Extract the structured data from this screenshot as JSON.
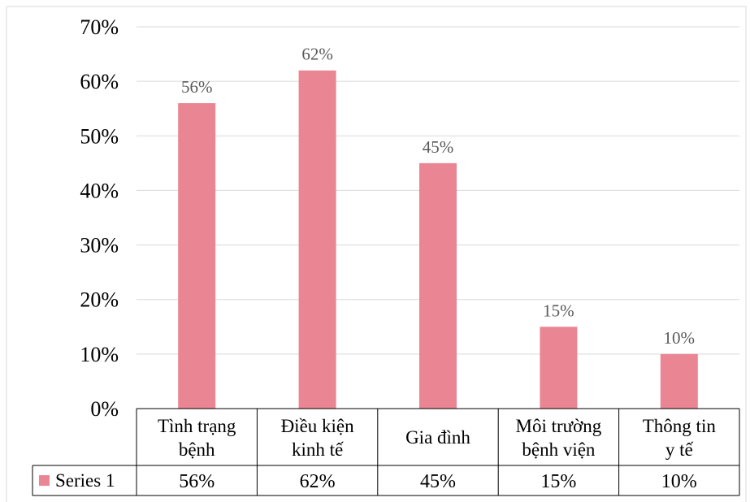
{
  "chart_data": {
    "type": "bar",
    "categories": [
      [
        "Tình trạng",
        "bệnh"
      ],
      [
        "Điều kiện",
        "kinh tế"
      ],
      [
        "Gia đình"
      ],
      [
        "Môi trường",
        "bệnh viện"
      ],
      [
        "Thông tin",
        "y tế"
      ]
    ],
    "series": [
      {
        "name": "Series 1",
        "values": [
          56,
          62,
          45,
          15,
          10
        ],
        "labels": [
          "56%",
          "62%",
          "45%",
          "15%",
          "10%"
        ],
        "color": "#ea8593"
      }
    ],
    "yticks": [
      "0%",
      "10%",
      "20%",
      "30%",
      "40%",
      "50%",
      "60%",
      "70%"
    ],
    "ylim": [
      0,
      70
    ],
    "grid": true,
    "data_table": true,
    "legend": "in-data-table"
  }
}
